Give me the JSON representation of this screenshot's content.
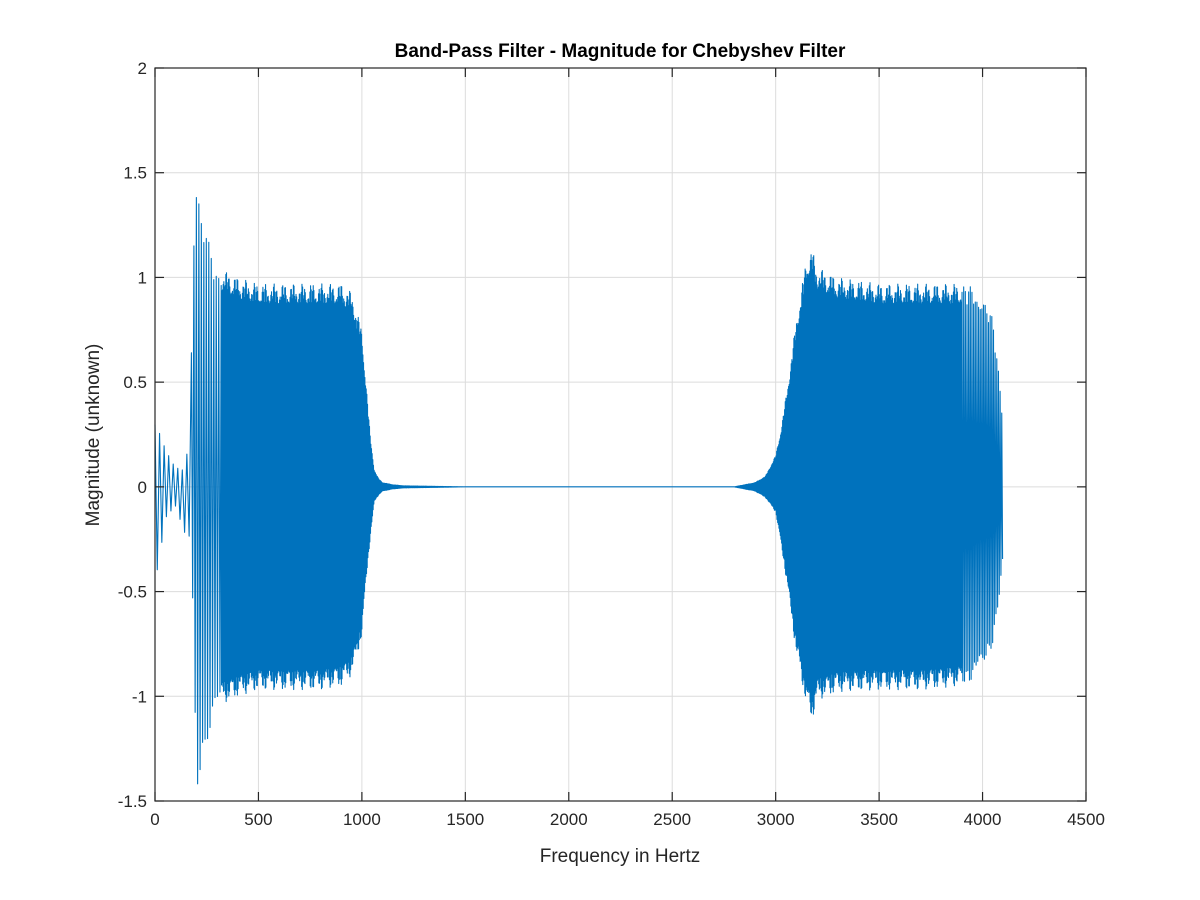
{
  "chart_data": {
    "type": "line",
    "title": "Band-Pass Filter - Magnitude for Chebyshev Filter",
    "xlabel": "Frequency in Hertz",
    "ylabel": "Magnitude (unknown)",
    "xlim": [
      0,
      4500
    ],
    "ylim": [
      -1.5,
      2
    ],
    "xticks": [
      0,
      500,
      1000,
      1500,
      2000,
      2500,
      3000,
      3500,
      4000,
      4500
    ],
    "yticks": [
      -1.5,
      -1,
      -0.5,
      0,
      0.5,
      1,
      1.5,
      2
    ],
    "xtick_labels": [
      "0",
      "500",
      "1000",
      "1500",
      "2000",
      "2500",
      "3000",
      "3500",
      "4000",
      "4500"
    ],
    "ytick_labels": [
      "-1.5",
      "-1",
      "-0.5",
      "0",
      "0.5",
      "1",
      "1.5",
      "2"
    ],
    "grid": true,
    "series_color": "#0072BD",
    "series": [
      {
        "x_range": [
          0,
          4100
        ],
        "envelope": {
          "x": [
            0,
            50,
            100,
            150,
            175,
            195,
            200,
            250,
            300,
            400,
            500,
            600,
            700,
            800,
            900,
            950,
            1000,
            1020,
            1040,
            1060,
            1080,
            1100,
            1150,
            1200,
            1500,
            2000,
            2500,
            2800,
            2900,
            2950,
            3000,
            3030,
            3060,
            3100,
            3150,
            3175,
            3200,
            3300,
            3500,
            3700,
            3900,
            3950,
            4000,
            4050,
            4080,
            4100
          ],
          "upper": [
            0.33,
            0.18,
            0.1,
            0.08,
            0.66,
            1.58,
            1.45,
            1.2,
            1.05,
            1.0,
            0.97,
            0.97,
            0.97,
            0.97,
            0.97,
            0.93,
            0.75,
            0.5,
            0.25,
            0.08,
            0.04,
            0.02,
            0.01,
            0.005,
            0.0,
            0.0,
            0.0,
            0.0,
            0.02,
            0.05,
            0.15,
            0.3,
            0.5,
            0.8,
            1.1,
            1.14,
            1.05,
            1.0,
            0.97,
            0.97,
            0.97,
            0.96,
            0.93,
            0.8,
            0.55,
            0.3
          ],
          "lower": [
            -0.5,
            -0.15,
            -0.1,
            -0.26,
            -0.26,
            -1.2,
            -1.5,
            -1.22,
            -1.05,
            -1.0,
            -0.97,
            -0.97,
            -0.97,
            -0.97,
            -0.95,
            -0.9,
            -0.72,
            -0.45,
            -0.25,
            -0.07,
            -0.04,
            -0.02,
            -0.01,
            -0.005,
            0.0,
            0.0,
            0.0,
            0.0,
            -0.02,
            -0.05,
            -0.12,
            -0.3,
            -0.5,
            -0.8,
            -1.05,
            -1.12,
            -1.02,
            -0.98,
            -0.97,
            -0.97,
            -0.95,
            -0.93,
            -0.88,
            -0.75,
            -0.55,
            -0.35
          ]
        }
      }
    ]
  }
}
